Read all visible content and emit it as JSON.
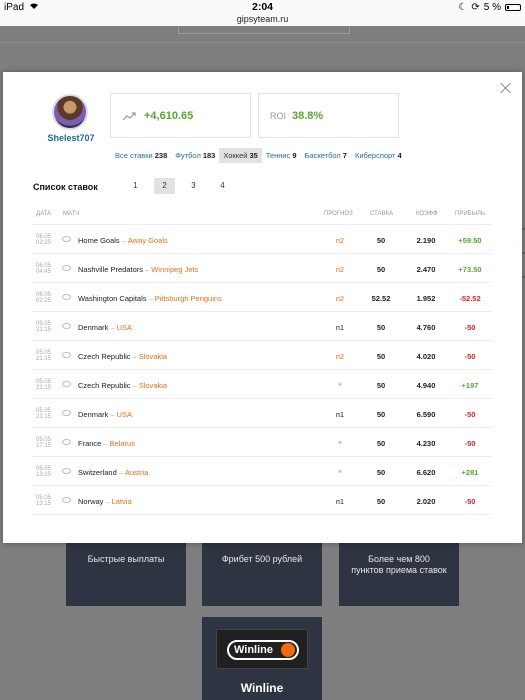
{
  "status_bar": {
    "device": "iPad",
    "time": "2:04",
    "battery": "5 %"
  },
  "browser": {
    "url": "gipsyteam.ru"
  },
  "background": {
    "promos": [
      "Быстрые выплаты",
      "Фрибет 500 рублей",
      "Более чем 800 пунктов приема ставок"
    ],
    "bookmaker": {
      "logo_text": "Winline",
      "name": "Winline"
    }
  },
  "profile": {
    "username": "Shelest707",
    "profit": "+4,610.65",
    "roi_label": "ROI",
    "roi_value": "38.8%"
  },
  "filters": [
    {
      "label": "Все ставки",
      "count": "238",
      "active": false
    },
    {
      "label": "Футбол",
      "count": "183",
      "active": false
    },
    {
      "label": "Хоккей",
      "count": "35",
      "active": true
    },
    {
      "label": "Теннис",
      "count": "9",
      "active": false
    },
    {
      "label": "Баскетбол",
      "count": "7",
      "active": false
    },
    {
      "label": "Киберспорт",
      "count": "4",
      "active": false
    }
  ],
  "list": {
    "title": "Список ставок",
    "pages": [
      "1",
      "2",
      "3",
      "4"
    ],
    "active_page": "2"
  },
  "table": {
    "columns": {
      "date": "ДАТА",
      "match": "МАТЧ",
      "forecast": "ПРОГНОЗ",
      "stake": "СТАВКА",
      "coef": "КОЭФФ",
      "profit": "ПРИБЫЛЬ"
    },
    "rows": [
      {
        "date": "06.05",
        "time": "02:25",
        "home": "Home Goals",
        "away": "Away Goals",
        "forecast": "п2",
        "stake": "50",
        "coef": "2.190",
        "profit": "+59.50"
      },
      {
        "date": "06.05",
        "time": "04:45",
        "home": "Nashville Predators",
        "away": "Winnipeg Jets",
        "forecast": "п2",
        "stake": "50",
        "coef": "2.470",
        "profit": "+73.50"
      },
      {
        "date": "06.05",
        "time": "02:25",
        "home": "Washington Capitals",
        "away": "Pittsburgh Penguins",
        "forecast": "п2",
        "stake": "52.52",
        "coef": "1.952",
        "profit": "-52.52"
      },
      {
        "date": "05.05",
        "time": "21:15",
        "home": "Denmark",
        "away": "USA",
        "forecast": "п1",
        "stake": "50",
        "coef": "4.760",
        "profit": "-50"
      },
      {
        "date": "05.05",
        "time": "21:15",
        "home": "Czech Republic",
        "away": "Slovakia",
        "forecast": "п2",
        "stake": "50",
        "coef": "4.020",
        "profit": "-50"
      },
      {
        "date": "05.05",
        "time": "21:15",
        "home": "Czech Republic",
        "away": "Slovakia",
        "forecast": "н",
        "stake": "50",
        "coef": "4.940",
        "profit": "+197"
      },
      {
        "date": "05.05",
        "time": "21:15",
        "home": "Denmark",
        "away": "USA",
        "forecast": "п1",
        "stake": "50",
        "coef": "6.590",
        "profit": "-50"
      },
      {
        "date": "05.05",
        "time": "17:15",
        "home": "France",
        "away": "Belarus",
        "forecast": "н",
        "stake": "50",
        "coef": "4.230",
        "profit": "-50"
      },
      {
        "date": "05.05",
        "time": "13:15",
        "home": "Switzerland",
        "away": "Austria",
        "forecast": "н",
        "stake": "50",
        "coef": "6.620",
        "profit": "+281"
      },
      {
        "date": "05.05",
        "time": "13:15",
        "home": "Norway",
        "away": "Latvia",
        "forecast": "п1",
        "stake": "50",
        "coef": "2.020",
        "profit": "-50"
      }
    ]
  },
  "colors": {
    "positive": "#59a433",
    "negative": "#d8232a",
    "away_team": "#e4711a",
    "link": "#2a6f8f"
  }
}
